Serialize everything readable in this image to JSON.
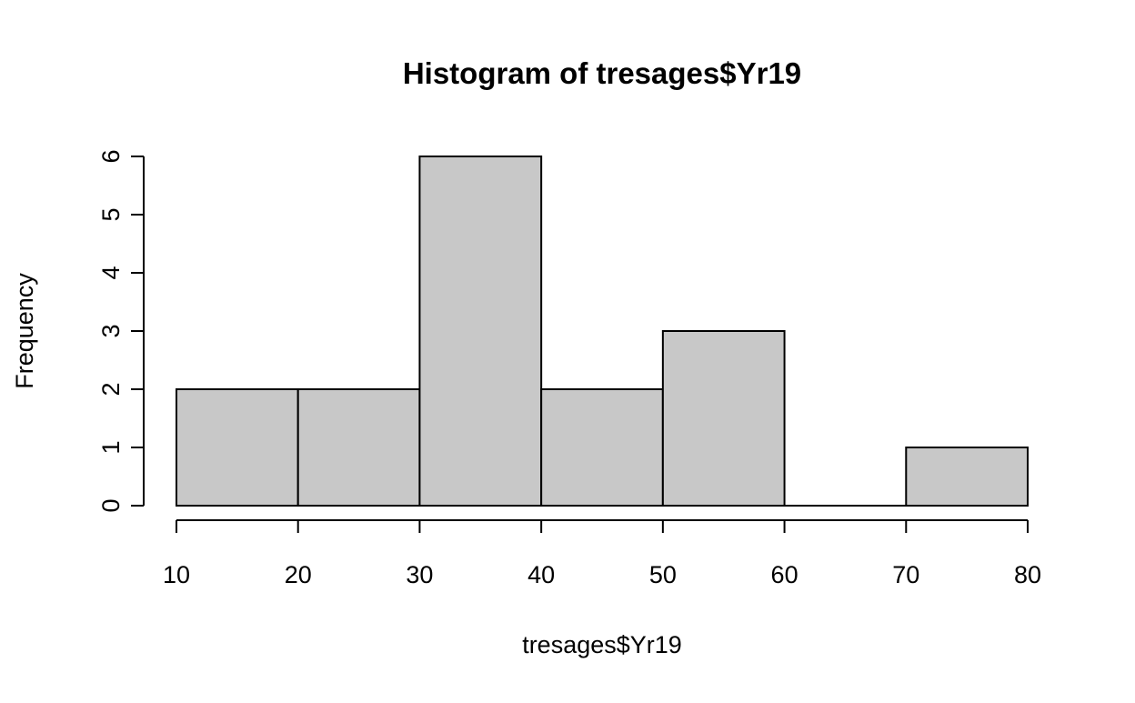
{
  "chart_data": {
    "type": "bar",
    "title": "Histogram of tresages$Yr19",
    "xlabel": "tresages$Yr19",
    "ylabel": "Frequency",
    "bin_edges": [
      10,
      20,
      30,
      40,
      50,
      60,
      70,
      80
    ],
    "values": [
      2,
      2,
      6,
      2,
      3,
      0,
      1
    ],
    "x_ticks": [
      10,
      20,
      30,
      40,
      50,
      60,
      70,
      80
    ],
    "y_ticks": [
      0,
      1,
      2,
      3,
      4,
      5,
      6
    ],
    "xlim": [
      10,
      80
    ],
    "ylim": [
      0,
      6
    ],
    "grid": false,
    "bar_color": "#c8c8c8",
    "edge_color": "#000000"
  }
}
